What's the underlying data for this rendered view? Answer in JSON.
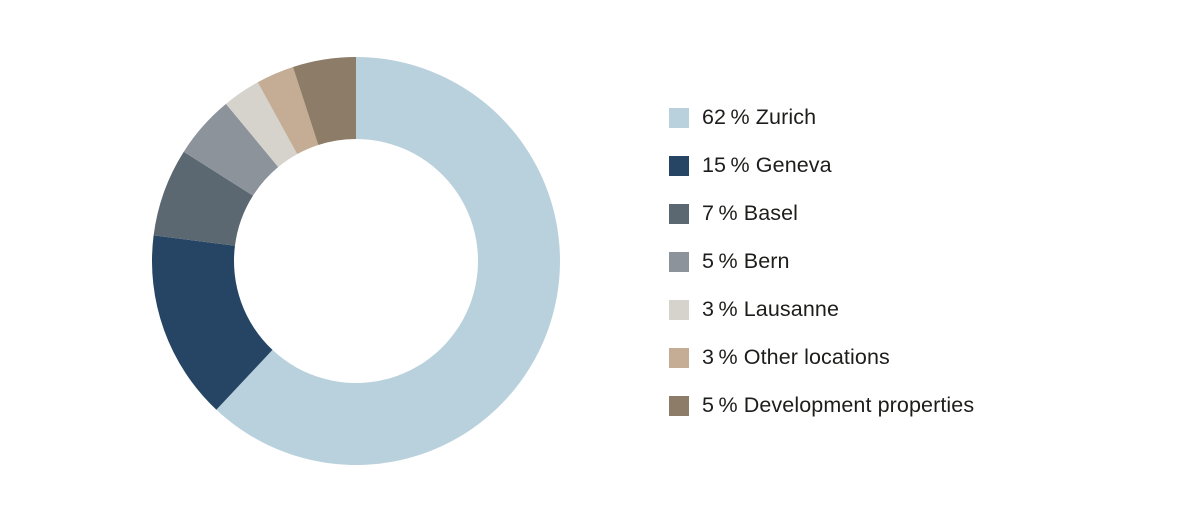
{
  "page": {
    "background_color": "#ffffff",
    "text_color": "#1d1d1b"
  },
  "chart_data": {
    "type": "pie",
    "subtype": "donut",
    "title": "",
    "categories": [
      "Zurich",
      "Geneva",
      "Basel",
      "Bern",
      "Lausanne",
      "Other locations",
      "Development properties"
    ],
    "values": [
      62,
      15,
      7,
      5,
      3,
      3,
      5
    ],
    "unit": "%",
    "colors": [
      "#b9d1dd",
      "#264564",
      "#5b6872",
      "#8d939b",
      "#d5d3cb",
      "#c4ad94",
      "#8c7c68"
    ],
    "start_angle_deg": 0,
    "direction": "clockwise",
    "outer_radius_px": 204,
    "inner_radius_px": 122,
    "legend_position": "right",
    "grid": false
  },
  "legend": {
    "items": [
      {
        "text": "62 % Zurich",
        "color": "#b9d1dd"
      },
      {
        "text": "15 % Geneva",
        "color": "#264564"
      },
      {
        "text": "7 % Basel",
        "color": "#5b6872"
      },
      {
        "text": "5 % Bern",
        "color": "#8d939b"
      },
      {
        "text": "3 % Lausanne",
        "color": "#d5d3cb"
      },
      {
        "text": "3 % Other locations",
        "color": "#c4ad94"
      },
      {
        "text": "5 % Development properties",
        "color": "#8c7c68"
      }
    ]
  }
}
